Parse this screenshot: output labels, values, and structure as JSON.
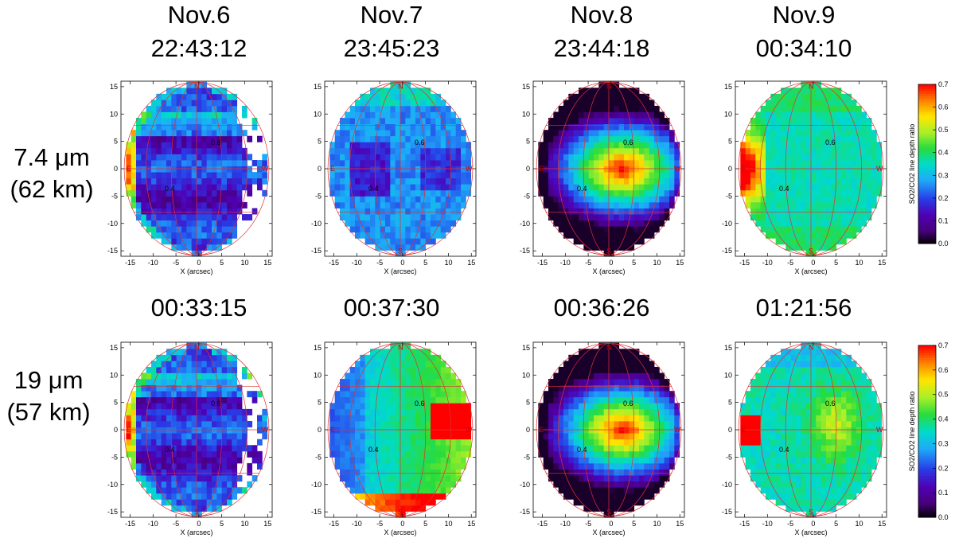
{
  "headers": {
    "dates": [
      "Nov.6",
      "Nov.7",
      "Nov.8",
      "Nov.9"
    ],
    "times_row1": [
      "22:43:12",
      "23:45:23",
      "23:44:18",
      "00:34:10"
    ],
    "times_row2": [
      "00:33:15",
      "00:37:30",
      "00:36:26",
      "01:21:56"
    ]
  },
  "rows": [
    {
      "wavelength": "7.4 μm",
      "altitude": "(62 km)"
    },
    {
      "wavelength": "19 μm",
      "altitude": "(57 km)"
    }
  ],
  "colorbar": {
    "label": "SO2/CO2 line depth ratio",
    "ticks": [
      "0.0",
      "0.1",
      "0.2",
      "0.3",
      "0.4",
      "0.5",
      "0.6",
      "0.7"
    ],
    "range": [
      0.0,
      0.7
    ]
  },
  "chart_data": {
    "type": "heatmap",
    "xlabel": "X (arcsec)",
    "x_ticks": [
      "-15",
      "-10",
      "-5",
      "0",
      "5",
      "10",
      "15"
    ],
    "y_ticks": [
      "-15",
      "-10",
      "-5",
      "0",
      "5",
      "10",
      "15"
    ],
    "xlim": [
      -17,
      16
    ],
    "ylim": [
      -16,
      16
    ],
    "contour_labels": [
      "0.4",
      "0.6"
    ],
    "compass": {
      "north": "N",
      "south": "S",
      "east": "E",
      "west": "W"
    },
    "panels": [
      {
        "row": 0,
        "date": "Nov.6",
        "time": "22:43:12",
        "map_type": "low_banded",
        "dominant_level": 0.15
      },
      {
        "row": 0,
        "date": "Nov.7",
        "time": "23:45:23",
        "map_type": "low_uniform",
        "dominant_level": 0.2
      },
      {
        "row": 0,
        "date": "Nov.8",
        "time": "23:44:18",
        "map_type": "central_high",
        "dominant_level": 0.5
      },
      {
        "row": 0,
        "date": "Nov.9",
        "time": "00:34:10",
        "map_type": "east_limb_high",
        "dominant_level": 0.3
      },
      {
        "row": 1,
        "date": "Nov.6",
        "time": "00:33:15",
        "map_type": "low_banded",
        "dominant_level": 0.15
      },
      {
        "row": 1,
        "date": "Nov.7",
        "time": "00:37:30",
        "map_type": "west_high",
        "dominant_level": 0.4
      },
      {
        "row": 1,
        "date": "Nov.8",
        "time": "00:36:26",
        "map_type": "central_high",
        "dominant_level": 0.5
      },
      {
        "row": 1,
        "date": "Nov.9",
        "time": "01:21:56",
        "map_type": "east_spot_high",
        "dominant_level": 0.4
      }
    ]
  }
}
